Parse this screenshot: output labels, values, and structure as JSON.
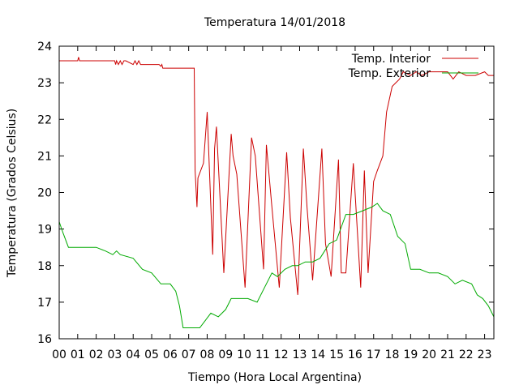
{
  "chart_data": {
    "type": "line",
    "title": "Temperatura 14/01/2018",
    "xlabel": "Tiempo (Hora Local Argentina)",
    "ylabel": "Temperatura (Grados Celsius)",
    "xlim": [
      0,
      23.5
    ],
    "ylim": [
      16,
      24
    ],
    "xticks": [
      0,
      1,
      2,
      3,
      4,
      5,
      6,
      7,
      8,
      9,
      10,
      11,
      12,
      13,
      14,
      15,
      16,
      17,
      18,
      19,
      20,
      21,
      22,
      23
    ],
    "xtick_labels": [
      "00",
      "01",
      "02",
      "03",
      "04",
      "05",
      "06",
      "07",
      "08",
      "09",
      "10",
      "11",
      "12",
      "13",
      "14",
      "15",
      "16",
      "17",
      "18",
      "19",
      "20",
      "21",
      "22",
      "23"
    ],
    "yticks": [
      16,
      17,
      18,
      19,
      20,
      21,
      22,
      23,
      24
    ],
    "ytick_labels": [
      "16",
      "17",
      "18",
      "19",
      "20",
      "21",
      "22",
      "23",
      "24"
    ],
    "grid": false,
    "legend": "top-right",
    "series": [
      {
        "name": "Temp. Interior",
        "color": "#cc0000",
        "x": [
          0,
          0.7,
          1.0,
          1.05,
          1.1,
          3.0,
          3.05,
          3.1,
          3.2,
          3.3,
          3.4,
          3.5,
          3.6,
          4.0,
          4.1,
          4.2,
          4.3,
          4.4,
          4.5,
          5.4,
          5.5,
          5.55,
          5.6,
          6.5,
          7.3,
          7.35,
          7.45,
          7.5,
          7.8,
          8.0,
          8.3,
          8.4,
          8.5,
          8.9,
          9.3,
          9.4,
          9.6,
          10.05,
          10.4,
          10.6,
          11.05,
          11.2,
          11.5,
          11.9,
          12.3,
          12.5,
          12.9,
          13.2,
          13.4,
          13.7,
          14.2,
          14.4,
          14.7,
          15.1,
          15.25,
          15.5,
          15.9,
          16.3,
          16.5,
          16.7,
          17.0,
          17.2,
          17.5,
          17.7,
          18.0,
          18.2,
          18.4,
          18.6,
          19.0,
          19.3,
          19.6,
          20.0,
          20.5,
          21.0,
          21.3,
          21.6,
          22.0,
          22.3,
          22.5,
          23.0,
          23.2,
          23.35,
          23.5
        ],
        "y": [
          23.6,
          23.6,
          23.6,
          23.7,
          23.6,
          23.6,
          23.5,
          23.6,
          23.5,
          23.6,
          23.5,
          23.6,
          23.6,
          23.5,
          23.6,
          23.5,
          23.6,
          23.5,
          23.5,
          23.5,
          23.45,
          23.5,
          23.4,
          23.4,
          23.4,
          20.6,
          19.6,
          20.4,
          20.8,
          22.2,
          18.3,
          21.2,
          21.8,
          17.8,
          21.6,
          21.0,
          20.5,
          17.4,
          21.5,
          21.0,
          17.9,
          21.3,
          19.6,
          17.4,
          21.1,
          19.3,
          17.2,
          21.2,
          19.6,
          17.6,
          21.2,
          18.6,
          17.7,
          20.9,
          17.8,
          17.8,
          20.8,
          17.4,
          20.6,
          17.8,
          20.3,
          20.6,
          21.0,
          22.2,
          22.9,
          23.0,
          23.1,
          23.3,
          23.2,
          23.3,
          23.2,
          23.3,
          23.3,
          23.3,
          23.1,
          23.3,
          23.2,
          23.2,
          23.2,
          23.3,
          23.2,
          23.2,
          23.2
        ]
      },
      {
        "name": "Temp. Exterior",
        "color": "#00aa00",
        "x": [
          0,
          0.2,
          0.5,
          1.0,
          2.0,
          2.5,
          2.9,
          3.1,
          3.3,
          4.0,
          4.5,
          5.0,
          5.5,
          6.0,
          6.3,
          6.5,
          6.7,
          7.0,
          7.1,
          7.6,
          7.9,
          8.2,
          8.6,
          9.0,
          9.3,
          9.7,
          10.2,
          10.7,
          11.0,
          11.5,
          11.8,
          12.2,
          12.6,
          12.9,
          13.3,
          13.7,
          14.1,
          14.6,
          15.0,
          15.5,
          15.9,
          16.4,
          16.9,
          17.2,
          17.5,
          17.9,
          18.3,
          18.5,
          18.7,
          19.0,
          19.5,
          20.0,
          20.5,
          21.0,
          21.4,
          21.8,
          22.3,
          22.6,
          22.9,
          23.2,
          23.5
        ],
        "y": [
          19.2,
          18.9,
          18.5,
          18.5,
          18.5,
          18.4,
          18.3,
          18.4,
          18.3,
          18.2,
          17.9,
          17.8,
          17.5,
          17.5,
          17.3,
          16.9,
          16.3,
          16.3,
          16.3,
          16.3,
          16.5,
          16.7,
          16.6,
          16.8,
          17.1,
          17.1,
          17.1,
          17.0,
          17.3,
          17.8,
          17.7,
          17.9,
          18.0,
          18.0,
          18.1,
          18.1,
          18.2,
          18.6,
          18.7,
          19.4,
          19.4,
          19.5,
          19.6,
          19.7,
          19.5,
          19.4,
          18.8,
          18.7,
          18.6,
          17.9,
          17.9,
          17.8,
          17.8,
          17.7,
          17.5,
          17.6,
          17.5,
          17.2,
          17.1,
          16.9,
          16.6
        ]
      }
    ]
  }
}
